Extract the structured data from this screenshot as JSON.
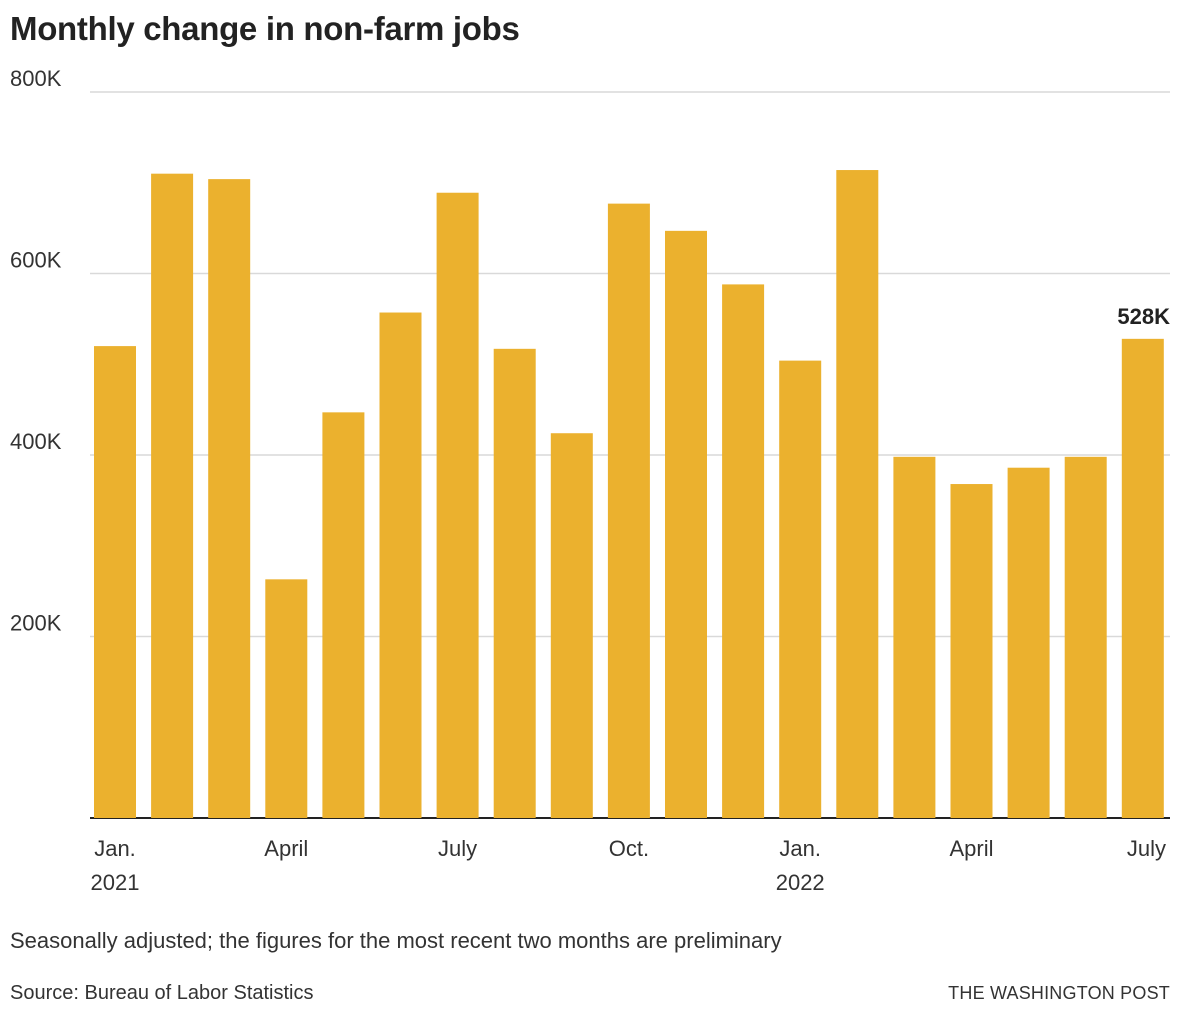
{
  "chart_data": {
    "type": "bar",
    "title": "Monthly change in non-farm jobs",
    "categories": [
      "Jan. 2021",
      "Feb. 2021",
      "Mar. 2021",
      "Apr. 2021",
      "May 2021",
      "Jun. 2021",
      "Jul. 2021",
      "Aug. 2021",
      "Sep. 2021",
      "Oct. 2021",
      "Nov. 2021",
      "Dec. 2021",
      "Jan. 2022",
      "Feb. 2022",
      "Mar. 2022",
      "Apr. 2022",
      "May 2022",
      "Jun. 2022",
      "Jul. 2022"
    ],
    "values": [
      520000,
      710000,
      704000,
      263000,
      447000,
      557000,
      689000,
      517000,
      424000,
      677000,
      647000,
      588000,
      504000,
      714000,
      398000,
      368000,
      386000,
      398000,
      528000
    ],
    "ylim": [
      0,
      800000
    ],
    "yticks": [
      {
        "value": 200000,
        "label": "200K"
      },
      {
        "value": 400000,
        "label": "400K"
      },
      {
        "value": 600000,
        "label": "600K"
      },
      {
        "value": 800000,
        "label": "800K"
      }
    ],
    "xticks": [
      {
        "index": 0,
        "label": "Jan.",
        "sublabel": "2021"
      },
      {
        "index": 3,
        "label": "April",
        "sublabel": ""
      },
      {
        "index": 6,
        "label": "July",
        "sublabel": ""
      },
      {
        "index": 9,
        "label": "Oct.",
        "sublabel": ""
      },
      {
        "index": 12,
        "label": "Jan.",
        "sublabel": "2022"
      },
      {
        "index": 15,
        "label": "April",
        "sublabel": ""
      },
      {
        "index": 18,
        "label": "July",
        "sublabel": ""
      }
    ],
    "annotation": {
      "index": 18,
      "label": "528K"
    },
    "bar_color": "#ebb12e",
    "grid": true
  },
  "note": "Seasonally adjusted; the figures for the most recent two months are preliminary",
  "source": "Source: Bureau of Labor Statistics",
  "credit": "THE WASHINGTON POST"
}
